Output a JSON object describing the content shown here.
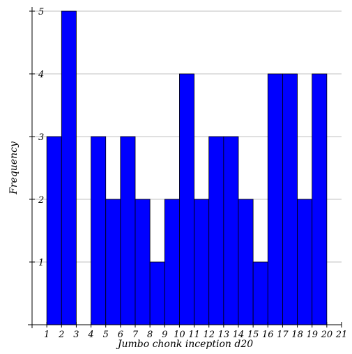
{
  "chart_data": {
    "type": "bar",
    "title": "",
    "xlabel": "Jumbo chonk inception d20",
    "ylabel": "Frequency",
    "categories": [
      1,
      2,
      3,
      4,
      5,
      6,
      7,
      8,
      9,
      10,
      11,
      12,
      13,
      14,
      15,
      16,
      17,
      18,
      19,
      20
    ],
    "values": [
      3,
      5,
      0,
      3,
      2,
      3,
      2,
      1,
      2,
      4,
      2,
      3,
      3,
      2,
      1,
      4,
      4,
      2,
      4,
      0
    ],
    "xticks": [
      1,
      2,
      3,
      4,
      5,
      6,
      7,
      8,
      9,
      10,
      11,
      12,
      13,
      14,
      15,
      16,
      17,
      18,
      19,
      20,
      21
    ],
    "yticks": [
      1,
      2,
      3,
      4,
      5
    ],
    "xlim": [
      0,
      21
    ],
    "ylim": [
      0,
      5
    ],
    "grid": "horizontal",
    "legend": "none",
    "bar_color": "#0000ff",
    "edge_color": "#000000",
    "grid_color": "#c0c0c0"
  }
}
